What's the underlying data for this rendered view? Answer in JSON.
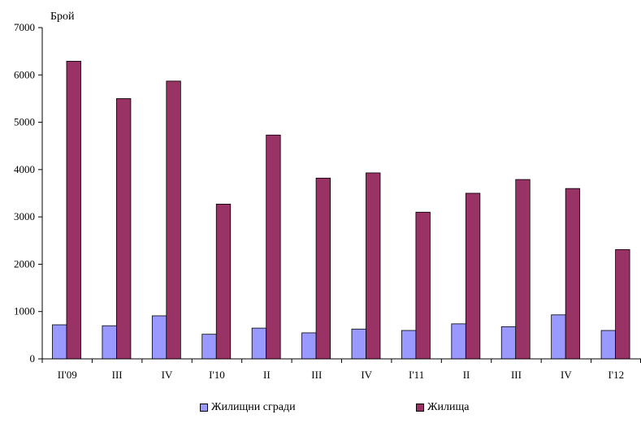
{
  "chart_data": {
    "type": "bar",
    "title": "",
    "xlabel": "",
    "ylabel": "Брой",
    "ylim": [
      0,
      7000
    ],
    "yticks": [
      0,
      1000,
      2000,
      3000,
      4000,
      5000,
      6000,
      7000
    ],
    "grid": false,
    "legend_placement": "bottom",
    "categories": [
      "II'09",
      "III",
      "IV",
      "I'10",
      "II",
      "III",
      "IV",
      "I'11",
      "II",
      "III",
      "IV",
      "I'12"
    ],
    "series": [
      {
        "name": "Жилищни сгради",
        "color": "#9999ff",
        "values": [
          720,
          700,
          910,
          520,
          650,
          550,
          630,
          600,
          740,
          680,
          930,
          600
        ]
      },
      {
        "name": "Жилища",
        "color": "#993366",
        "values": [
          6290,
          5500,
          5870,
          3270,
          4730,
          3820,
          3930,
          3100,
          3500,
          3790,
          3600,
          2310
        ]
      }
    ]
  }
}
